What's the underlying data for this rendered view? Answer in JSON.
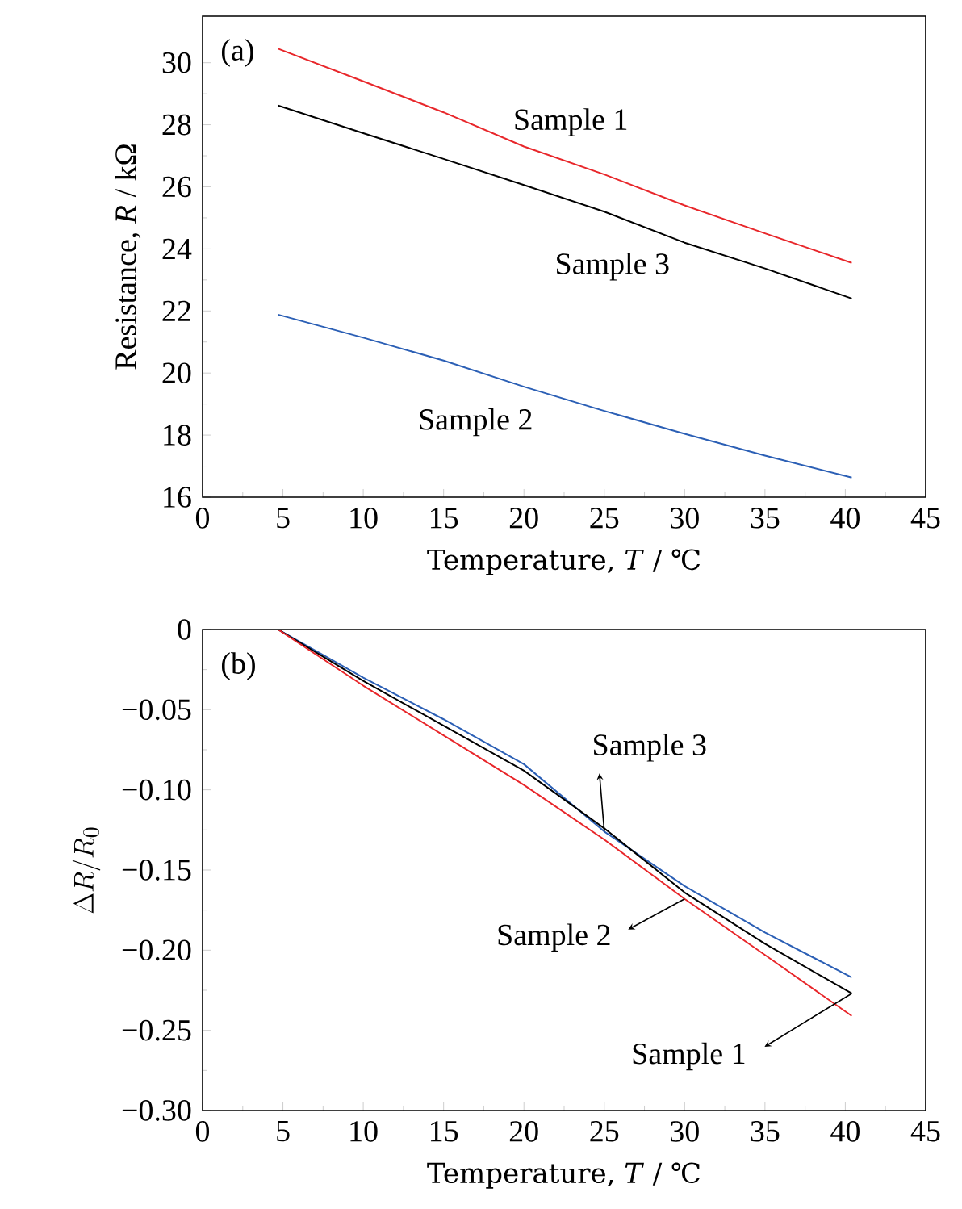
{
  "chart_data": [
    {
      "type": "line",
      "annotations": [
        "(a)"
      ],
      "xlabel": "Temperature, *T* / ℃",
      "ylabel": "Resistance, *R* / kΩ",
      "x": [
        4.7,
        10,
        15,
        20,
        25,
        30,
        35,
        40.4
      ],
      "series": [
        {
          "name": "Sample 1",
          "color": "#e8262a",
          "values": [
            30.45,
            29.4,
            28.4,
            27.3,
            26.4,
            25.4,
            24.5,
            23.55
          ]
        },
        {
          "name": "Sample 3",
          "color": "#000000",
          "values": [
            28.62,
            27.73,
            26.9,
            26.06,
            25.2,
            24.2,
            23.37,
            22.4
          ]
        },
        {
          "name": "Sample 2",
          "color": "#2b5fb5",
          "values": [
            21.88,
            21.14,
            20.4,
            19.56,
            18.78,
            18.04,
            17.34,
            16.63
          ]
        }
      ],
      "xlim": [
        0,
        45
      ],
      "xticks": [
        0,
        5,
        10,
        15,
        20,
        25,
        30,
        35,
        40,
        45
      ],
      "ylim": [
        16,
        31.5
      ],
      "yticks": [
        16,
        18,
        20,
        22,
        24,
        26,
        28,
        30
      ],
      "grid": false,
      "legend": false,
      "marker": "none",
      "line_style": "solid"
    },
    {
      "type": "line",
      "annotations": [
        "(b)",
        {
          "text": "Sample 3",
          "x": 25,
          "y": -0.126
        },
        {
          "text": "Sample 2",
          "x": 30,
          "y": -0.168
        },
        {
          "text": "Sample 1",
          "x": 40.4,
          "y": -0.227
        }
      ],
      "xlabel": "Temperature, *T* / ℃",
      "ylabel": "\\Delta R/R_{0}",
      "x": [
        4.7,
        10,
        15,
        20,
        25,
        30,
        35,
        40.4
      ],
      "series": [
        {
          "color": "#2b5fb5",
          "values": [
            0,
            -0.03,
            -0.056,
            -0.084,
            -0.126,
            -0.16,
            -0.189,
            -0.217
          ]
        },
        {
          "color": "#000000",
          "values": [
            0,
            -0.032,
            -0.06,
            -0.088,
            -0.124,
            -0.164,
            -0.196,
            -0.227
          ]
        },
        {
          "color": "#e8262a",
          "values": [
            0,
            -0.035,
            -0.066,
            -0.097,
            -0.131,
            -0.168,
            -0.203,
            -0.241
          ]
        }
      ],
      "xlim": [
        0,
        45
      ],
      "xticks": [
        0,
        5,
        10,
        15,
        20,
        25,
        30,
        35,
        40,
        45
      ],
      "ylim": [
        -0.3,
        0
      ],
      "yticks": [
        {
          "value": -0.3,
          "label": "−0.30"
        },
        {
          "value": -0.25,
          "label": "−0.25"
        },
        {
          "value": -0.2,
          "label": "−0.20"
        },
        {
          "value": -0.15,
          "label": "−0.15"
        },
        {
          "value": -0.1,
          "label": "−0.10"
        },
        {
          "value": -0.05,
          "label": "−0.05"
        },
        0
      ],
      "grid": false,
      "legend": false,
      "marker": "none",
      "line_style": "solid"
    }
  ]
}
